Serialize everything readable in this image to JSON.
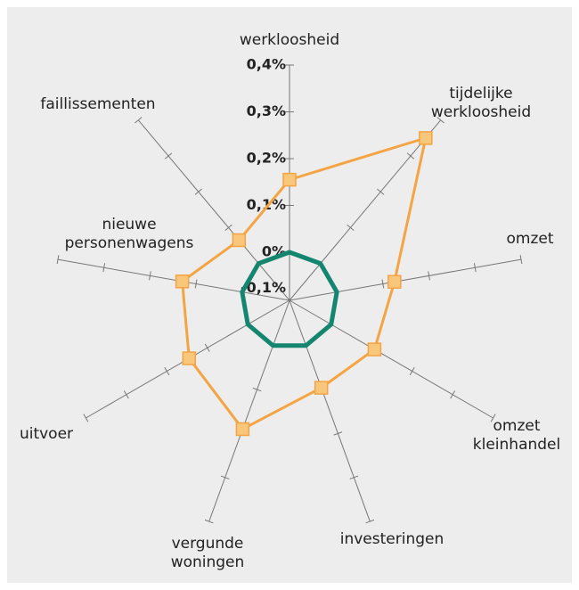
{
  "chart_data": {
    "type": "radar",
    "categories": [
      "werkloosheid",
      "tijdelijke werkloosheid",
      "omzet",
      "omzet kleinhandel",
      "investeringen",
      "vergunde woningen",
      "uitvoer",
      "nieuwe personenwagens",
      "faillissementen"
    ],
    "series": [
      {
        "color": "#f4a443",
        "values": [
          0.155,
          0.35,
          0.125,
          0.107,
          0.096,
          0.19,
          0.145,
          0.13,
          0.065
        ]
      },
      {
        "color": "#14856f",
        "values": [
          0,
          0,
          0,
          0,
          0,
          0,
          0,
          0,
          0
        ]
      }
    ],
    "rlim": [
      -0.1,
      0.4
    ],
    "rticks": [
      {
        "value": -0.1,
        "label": "-0,1%"
      },
      {
        "value": 0,
        "label": "0%"
      },
      {
        "value": 0.1,
        "label": "0,1%"
      },
      {
        "value": 0.2,
        "label": "0,2%"
      },
      {
        "value": 0.3,
        "label": "0,3%"
      },
      {
        "value": 0.4,
        "label": "0,4%"
      }
    ]
  }
}
